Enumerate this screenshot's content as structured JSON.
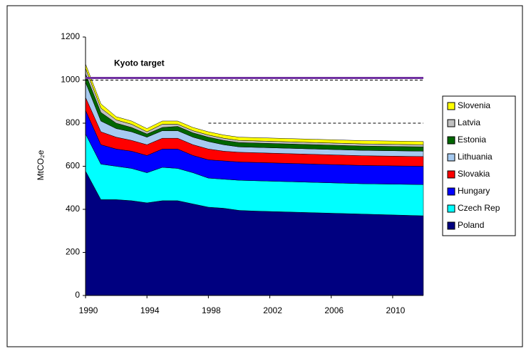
{
  "chart_data": {
    "type": "stacked-area",
    "y_label": "MtCO₂e",
    "x": [
      1990,
      1991,
      1992,
      1993,
      1994,
      1995,
      1996,
      1997,
      1998,
      1999,
      2000,
      2001,
      2002,
      2003,
      2004,
      2005,
      2006,
      2007,
      2008,
      2009,
      2010,
      2011,
      2012
    ],
    "xlim": [
      1990,
      2012
    ],
    "xticks": [
      1990,
      1994,
      1998,
      2002,
      2006,
      2010
    ],
    "ylim": [
      0,
      1200
    ],
    "yticks": [
      0,
      200,
      400,
      600,
      800,
      1000,
      1200
    ],
    "series": [
      {
        "name": "Poland",
        "color": "#000080",
        "values": [
          578,
          445,
          445,
          440,
          430,
          440,
          440,
          425,
          410,
          405,
          395,
          392,
          390,
          388,
          386,
          384,
          382,
          380,
          378,
          376,
          374,
          372,
          370
        ]
      },
      {
        "name": "Czech Rep",
        "color": "#00ffff",
        "values": [
          172,
          165,
          155,
          150,
          140,
          155,
          150,
          145,
          135,
          135,
          140,
          141,
          141,
          141,
          141,
          141,
          141,
          141,
          141,
          142,
          143,
          144,
          145
        ]
      },
      {
        "name": "Hungary",
        "color": "#0000ff",
        "values": [
          110,
          90,
          80,
          80,
          80,
          85,
          90,
          80,
          85,
          85,
          85,
          85,
          85,
          85,
          85,
          85,
          85,
          85,
          85,
          85,
          85,
          85,
          85
        ]
      },
      {
        "name": "Slovakia",
        "color": "#ff0000",
        "values": [
          60,
          60,
          55,
          50,
          50,
          50,
          50,
          50,
          50,
          45,
          45,
          45,
          45,
          45,
          45,
          45,
          45,
          45,
          45,
          45,
          45,
          45,
          45
        ]
      },
      {
        "name": "Lithuania",
        "color": "#a6caf0",
        "values": [
          70,
          50,
          40,
          40,
          35,
          35,
          35,
          35,
          35,
          30,
          25,
          25,
          25,
          25,
          25,
          25,
          25,
          25,
          25,
          25,
          25,
          25,
          25
        ]
      },
      {
        "name": "Estonia",
        "color": "#006600",
        "values": [
          40,
          40,
          25,
          20,
          15,
          15,
          20,
          20,
          20,
          20,
          20,
          20,
          20,
          20,
          20,
          20,
          20,
          20,
          20,
          20,
          20,
          20,
          20
        ]
      },
      {
        "name": "Latvia",
        "color": "#c0c0c0",
        "values": [
          25,
          20,
          15,
          15,
          10,
          15,
          10,
          10,
          10,
          10,
          10,
          10,
          10,
          10,
          10,
          10,
          10,
          10,
          10,
          10,
          10,
          10,
          10
        ]
      },
      {
        "name": "Slovenia",
        "color": "#ffff00",
        "values": [
          20,
          20,
          15,
          15,
          15,
          15,
          15,
          15,
          15,
          15,
          15,
          15,
          15,
          15,
          15,
          15,
          15,
          15,
          15,
          15,
          15,
          15,
          15
        ]
      }
    ],
    "reference_lines": [
      {
        "value": 1010,
        "color": "#7030a0",
        "label": "Kyoto target"
      },
      {
        "value": 1000,
        "color": "#000000",
        "style": "dashed"
      },
      {
        "value": 800,
        "color": "#000000",
        "style": "dashed",
        "from": 1998
      }
    ],
    "legend": "right"
  }
}
